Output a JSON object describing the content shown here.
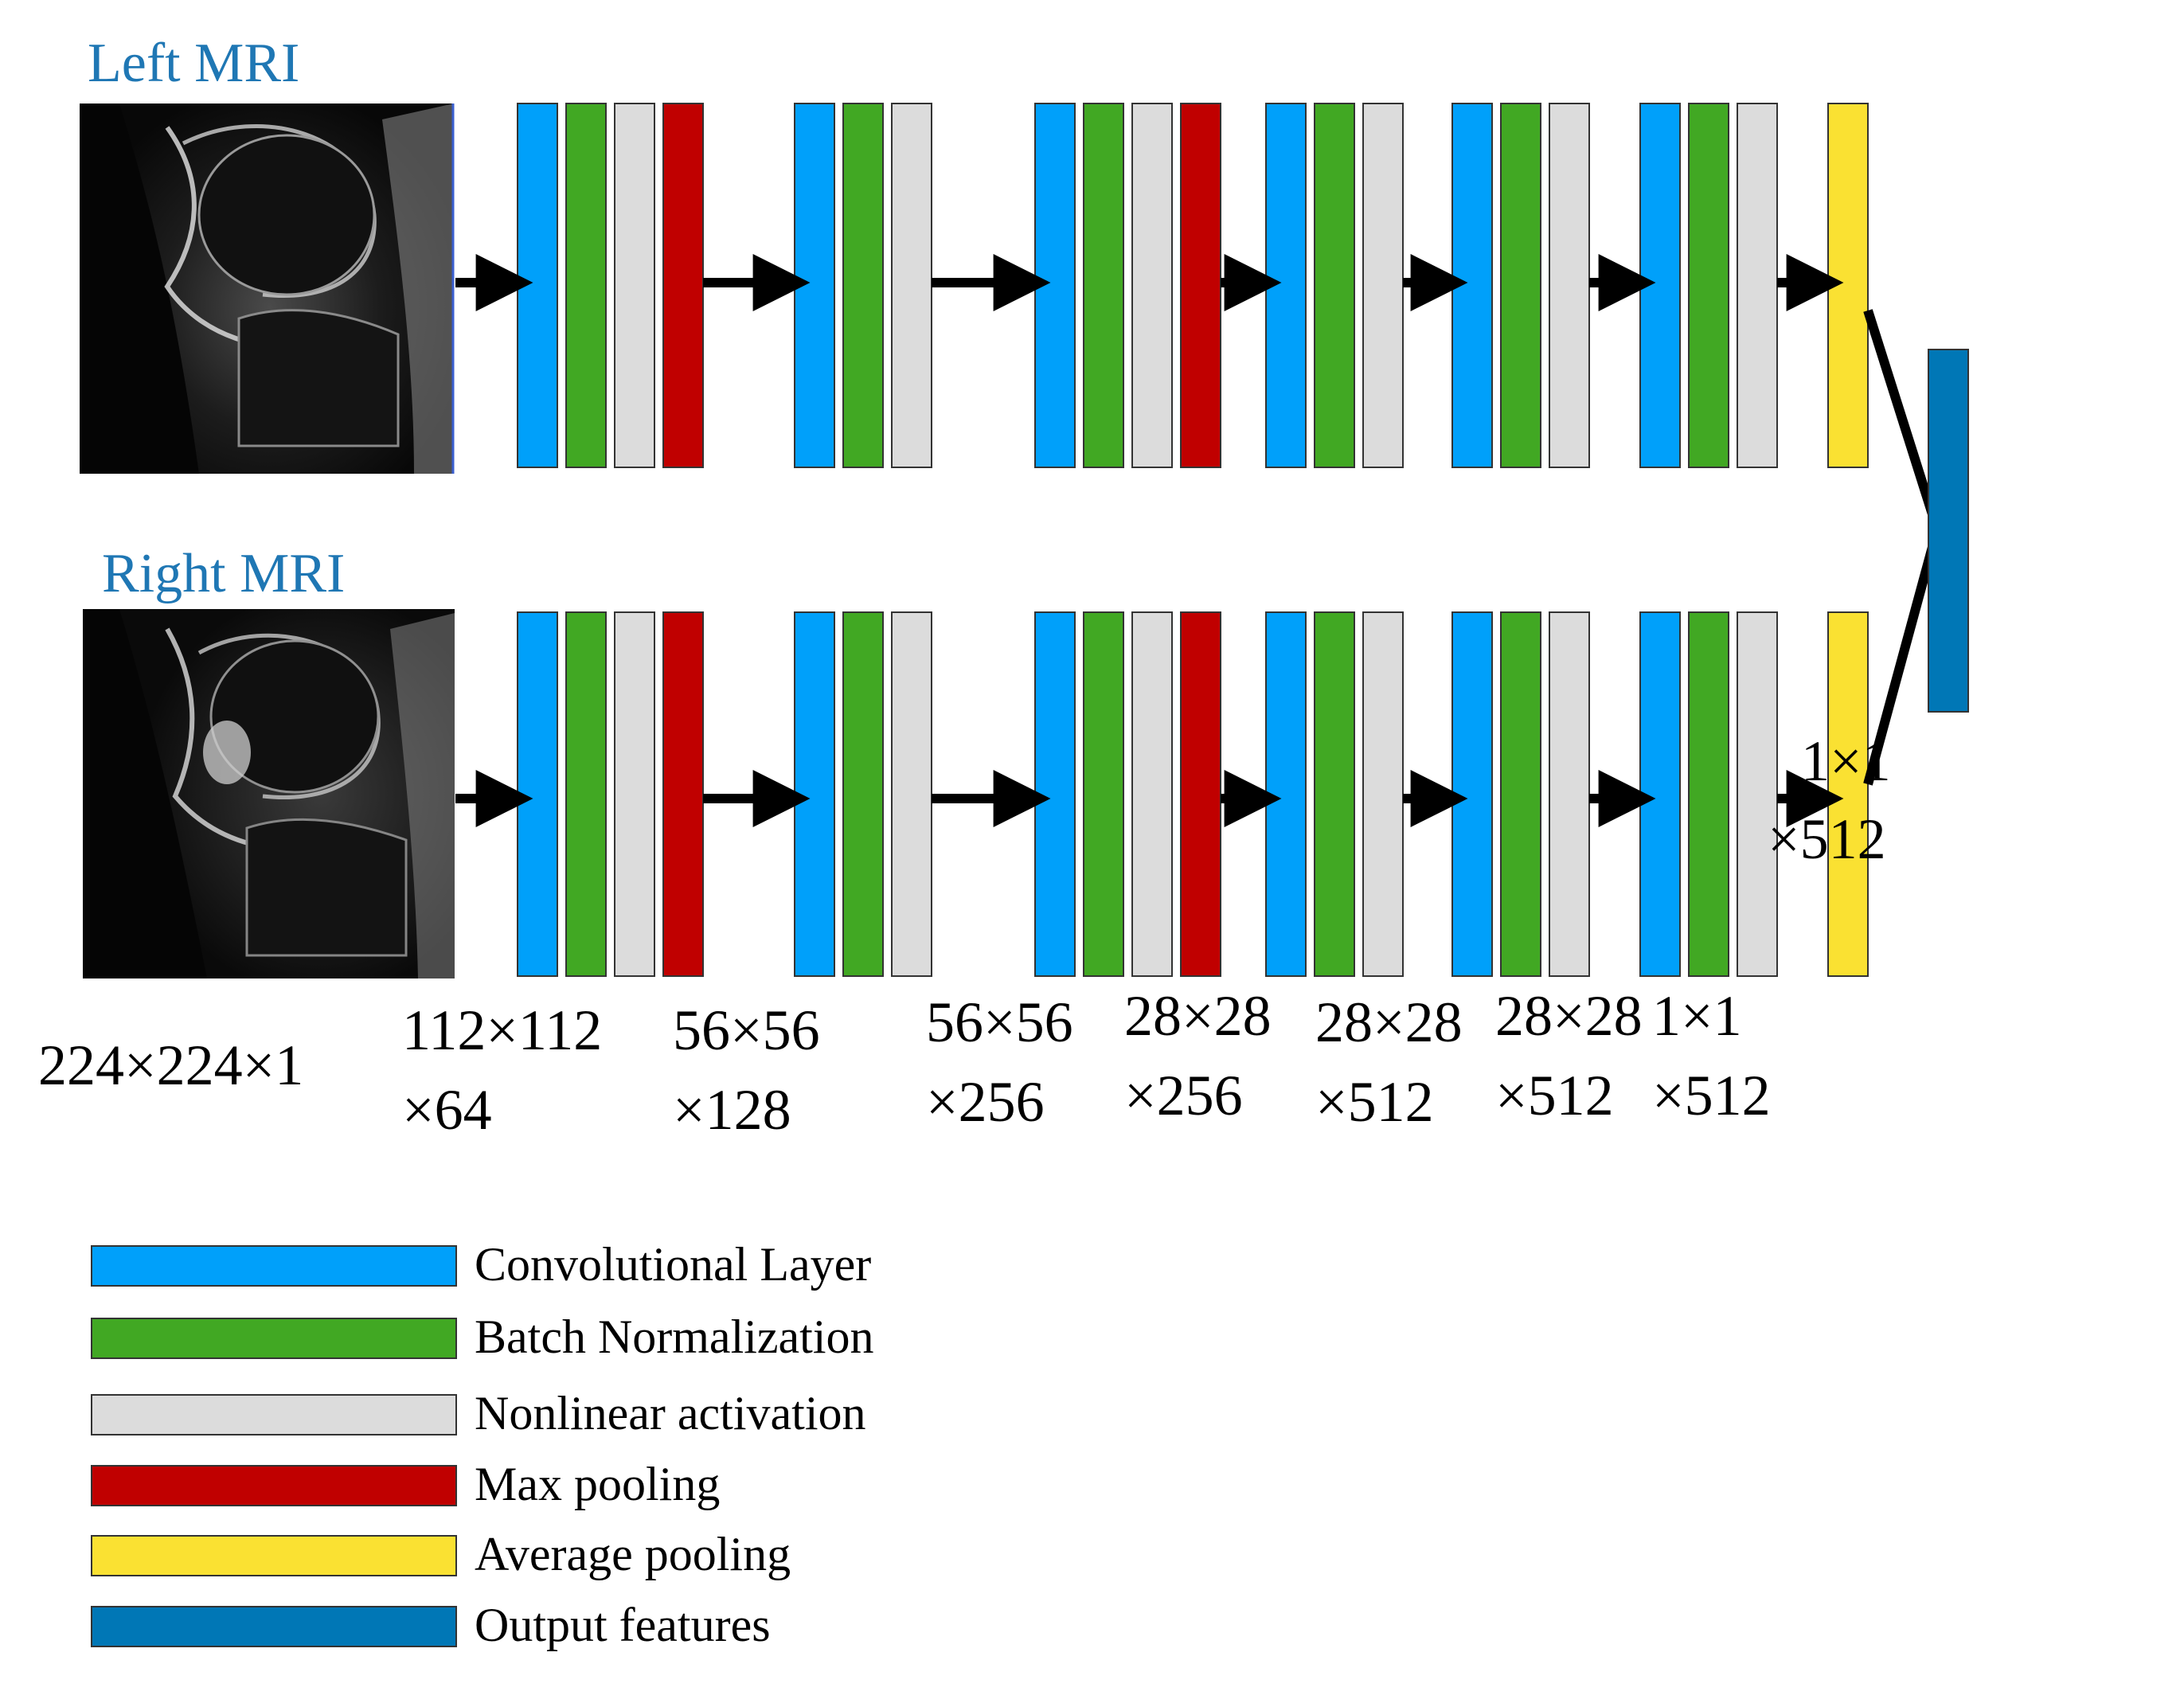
{
  "branches": [
    {
      "title": "Left MRI"
    },
    {
      "title": "Right MRI"
    }
  ],
  "input_dim": "224×224×1",
  "stage_dims": [
    {
      "line1": "112×112",
      "line2": "×64"
    },
    {
      "line1": "56×56",
      "line2": "×128"
    },
    {
      "line1": "56×56",
      "line2": "×256"
    },
    {
      "line1": "28×28",
      "line2": "×256"
    },
    {
      "line1": "28×28",
      "line2": "×512"
    },
    {
      "line1": "28×28",
      "line2": "×512"
    },
    {
      "line1": "1×1",
      "line2": "×512"
    }
  ],
  "overlap_dim": {
    "line1": "1×1",
    "line2": "×512"
  },
  "stages": [
    [
      "conv",
      "bn",
      "act",
      "maxpool"
    ],
    [
      "conv",
      "bn",
      "act"
    ],
    [
      "conv",
      "bn",
      "act",
      "maxpool"
    ],
    [
      "conv",
      "bn",
      "act"
    ],
    [
      "conv",
      "bn",
      "act"
    ],
    [
      "conv",
      "bn",
      "act"
    ],
    [
      "avgpool"
    ]
  ],
  "colors": {
    "conv": "#00a0fa",
    "bn": "#41a823",
    "act": "#dcdcdc",
    "maxpool": "#c00000",
    "avgpool": "#fae132",
    "output": "#0077b6",
    "title": "#1f77b4"
  },
  "legend": [
    {
      "key": "conv",
      "label": "Convolutional Layer"
    },
    {
      "key": "bn",
      "label": "Batch Normalization"
    },
    {
      "key": "act",
      "label": "Nonlinear activation"
    },
    {
      "key": "maxpool",
      "label": "Max pooling"
    },
    {
      "key": "avgpool",
      "label": "Average pooling"
    },
    {
      "key": "output",
      "label": "Output features"
    }
  ]
}
